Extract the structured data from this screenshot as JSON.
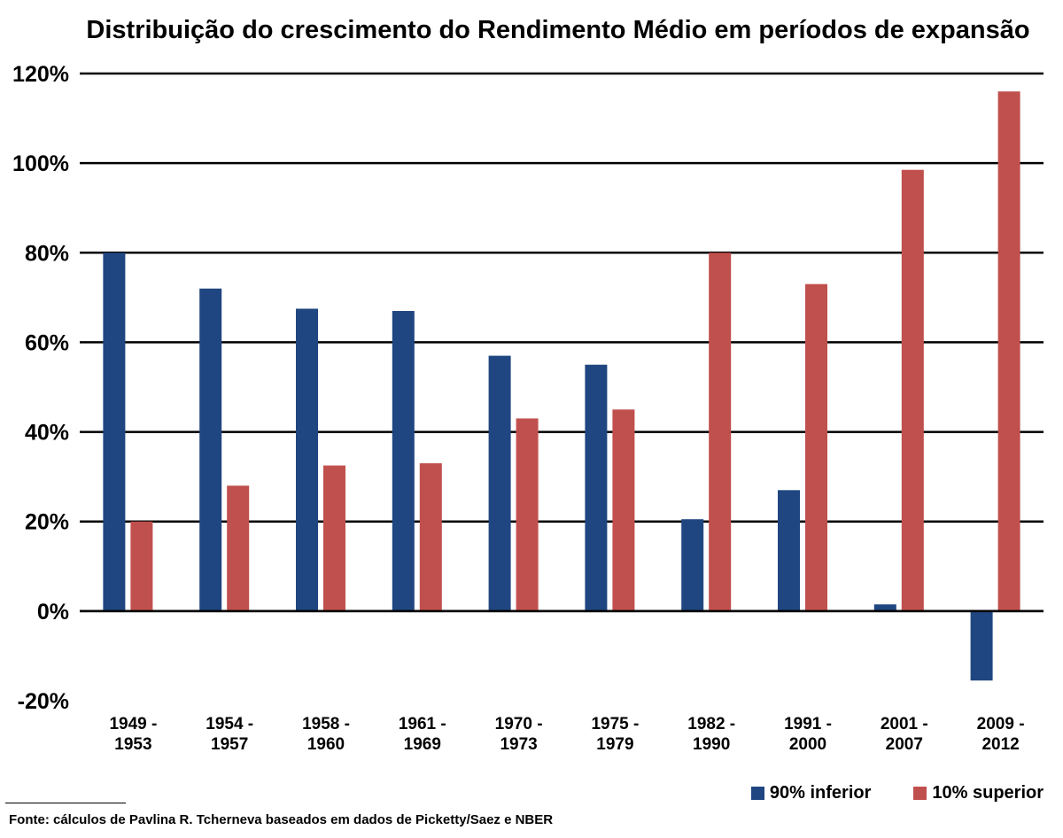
{
  "chart_data": {
    "type": "bar",
    "title": "Distribuição do crescimento do Rendimento Médio em períodos de expansão",
    "categories": [
      [
        "1949 -",
        "1953"
      ],
      [
        "1954 -",
        "1957"
      ],
      [
        "1958 -",
        "1960"
      ],
      [
        "1961 -",
        "1969"
      ],
      [
        "1970 -",
        "1973"
      ],
      [
        "1975 -",
        "1979"
      ],
      [
        "1982 -",
        "1990"
      ],
      [
        "1991 -",
        "2000"
      ],
      [
        "2001 -",
        "2007"
      ],
      [
        "2009 -",
        "2012"
      ]
    ],
    "series": [
      {
        "name": "90% inferior",
        "color": "#1f4680",
        "values": [
          80,
          72,
          67.5,
          67,
          57,
          55,
          20.5,
          27,
          1.5,
          -15.5
        ]
      },
      {
        "name": "10% superior",
        "color": "#c0504d",
        "values": [
          20,
          28,
          32.5,
          33,
          43,
          45,
          80,
          73,
          98.5,
          116
        ]
      }
    ],
    "yticks": [
      "120%",
      "100%",
      "80%",
      "60%",
      "40%",
      "20%",
      "0%",
      "-20%"
    ],
    "ylim": [
      -20,
      120
    ],
    "grid": true,
    "legend_position": "bottom-right"
  },
  "source": "Fonte: cálculos de Pavlina R. Tcherneva baseados em dados de Picketty/Saez e NBER"
}
